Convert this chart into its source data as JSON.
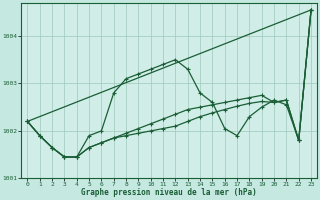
{
  "title": "Graphe pression niveau de la mer (hPa)",
  "background_color": "#c5e8e0",
  "plot_bg_color": "#d0ede8",
  "grid_color": "#9fc8bc",
  "line_color": "#1a5e35",
  "ylim": [
    1001.0,
    1004.7
  ],
  "yticks": [
    1001,
    1002,
    1003,
    1004
  ],
  "xlim": [
    -0.5,
    23.5
  ],
  "xticks": [
    0,
    1,
    2,
    3,
    4,
    5,
    6,
    7,
    8,
    9,
    10,
    11,
    12,
    13,
    14,
    15,
    16,
    17,
    18,
    19,
    20,
    21,
    22,
    23
  ],
  "line1": [
    1002.2,
    1001.9,
    1001.65,
    1001.45,
    1001.45,
    1001.9,
    1002.0,
    1002.8,
    1003.1,
    1003.2,
    1003.3,
    1003.4,
    1003.5,
    1003.3,
    1002.8,
    1002.6,
    1002.05,
    1001.9,
    1002.3,
    1002.5,
    1002.65,
    1002.55,
    1001.8,
    1004.55
  ],
  "line2": [
    1002.2,
    1001.9,
    1001.65,
    1001.45,
    1001.45,
    1001.65,
    1001.75,
    1001.85,
    1001.95,
    1002.05,
    1002.15,
    1002.25,
    1002.35,
    1002.45,
    1002.5,
    1002.55,
    1002.6,
    1002.65,
    1002.7,
    1002.75,
    1002.6,
    1002.65,
    1001.8,
    1004.55
  ],
  "line3_x": [
    0,
    23
  ],
  "line3_y": [
    1002.2,
    1004.55
  ],
  "line4": [
    1002.2,
    1001.9,
    1001.65,
    1001.45,
    1001.45,
    1001.65,
    1001.75,
    1001.85,
    1001.9,
    1001.95,
    1002.0,
    1002.05,
    1002.1,
    1002.2,
    1002.3,
    1002.38,
    1002.45,
    1002.52,
    1002.58,
    1002.62,
    1002.6,
    1002.65,
    1001.8,
    1004.55
  ]
}
